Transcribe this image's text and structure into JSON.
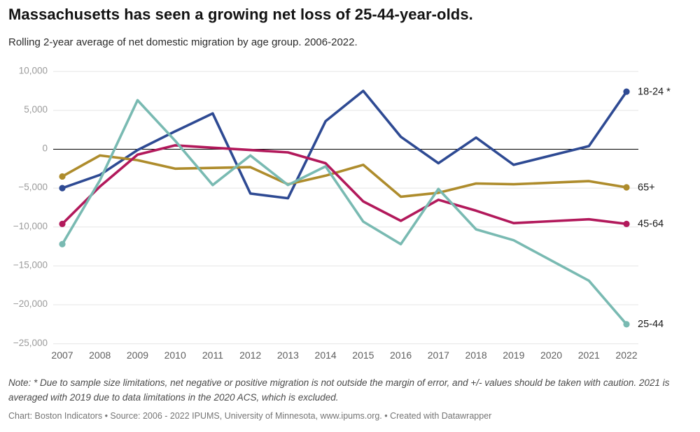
{
  "header": {
    "title": "Massachusetts has seen a growing net loss of 25-44-year-olds.",
    "subtitle": "Rolling 2-year average of net domestic migration by age group. 2006-2022."
  },
  "chart_data": {
    "type": "line",
    "x": [
      2007,
      2008,
      2009,
      2010,
      2011,
      2012,
      2013,
      2014,
      2015,
      2016,
      2017,
      2018,
      2019,
      2020,
      2021,
      2022
    ],
    "series": [
      {
        "name": "18-24 *",
        "color": "#2E4A93",
        "values": [
          -5000,
          -3300,
          -100,
          2300,
          4600,
          -5700,
          -6300,
          3600,
          7500,
          1600,
          -1800,
          1500,
          -2000,
          null,
          400,
          7400
        ]
      },
      {
        "name": "65+",
        "color": "#AE8C2C",
        "values": [
          -3500,
          -800,
          -1400,
          -2500,
          -2400,
          -2300,
          -4500,
          -3400,
          -2000,
          -6100,
          -5600,
          -4400,
          -4500,
          null,
          -4100,
          -4900
        ]
      },
      {
        "name": "45-64",
        "color": "#B2195B",
        "values": [
          -9600,
          -4800,
          -700,
          500,
          200,
          -100,
          -400,
          -1800,
          -6700,
          -9200,
          -6500,
          -7900,
          -9500,
          null,
          -9000,
          -9600
        ]
      },
      {
        "name": "25-44",
        "color": "#79BAB2",
        "values": [
          -12200,
          -4000,
          6300,
          1100,
          -4600,
          -800,
          -4600,
          -2200,
          -9300,
          -12200,
          -5100,
          -10300,
          -11700,
          null,
          -16900,
          -22500
        ]
      }
    ],
    "ylim": [
      -25000,
      10000
    ],
    "yticks": [
      {
        "value": 10000,
        "label": "10,000"
      },
      {
        "value": 5000,
        "label": "5,000"
      },
      {
        "value": 0,
        "label": "0"
      },
      {
        "value": -5000,
        "label": "−5,000"
      },
      {
        "value": -10000,
        "label": "−10,000"
      },
      {
        "value": -15000,
        "label": "−15,000"
      },
      {
        "value": -20000,
        "label": "−20,000"
      },
      {
        "value": -25000,
        "label": "−25,000"
      }
    ],
    "grid": "horizontal",
    "zero_line": true,
    "legend_position": "right-of-line-ends",
    "note_on_2020": "2020 has no data point; lines connect 2019 to 2021"
  },
  "footer": {
    "note": "Note: * Due to sample size limitations, net negative or positive migration is not outside the margin of error, and +/- values should be taken with caution. 2021 is averaged with 2019 due to data limitations in the 2020 ACS, which is excluded.",
    "credit": "Chart: Boston Indicators • Source: 2006 - 2022 IPUMS, University of Minnesota, www.ipums.org. • Created with Datawrapper"
  }
}
